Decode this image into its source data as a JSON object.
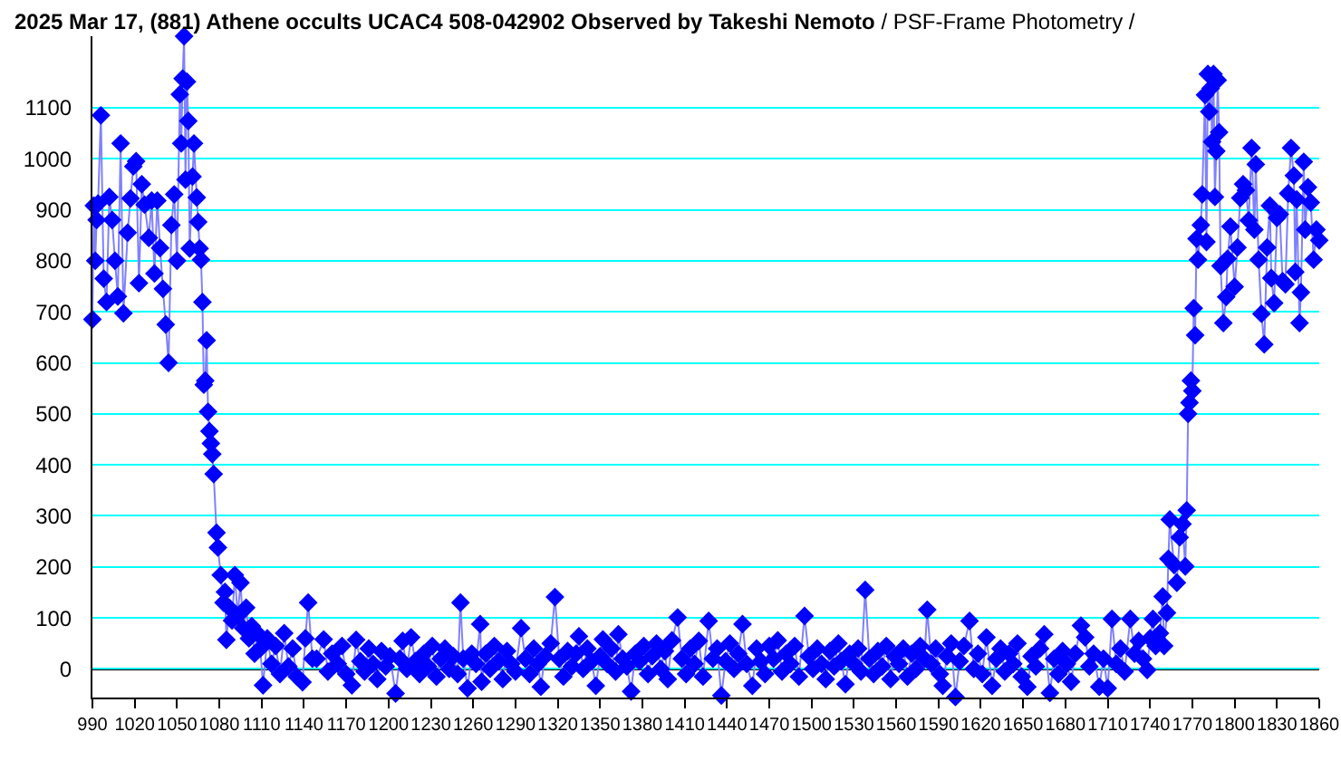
{
  "chart_data": {
    "type": "line",
    "title": "2025 Mar 17, (881) Athene occults UCAC4 508-042902 Observed by Takeshi Nemoto",
    "subtitle": "/ PSF-Frame Photometry /",
    "x": [
      990,
      991,
      992,
      993,
      994,
      996,
      998,
      1000,
      1002,
      1004,
      1006,
      1008,
      1010,
      1012,
      1015,
      1017,
      1019,
      1021,
      1023,
      1025,
      1027,
      1030,
      1032,
      1034,
      1036,
      1038,
      1040,
      1042,
      1044,
      1046,
      1048,
      1050,
      1052,
      1053,
      1054,
      1055,
      1056,
      1057,
      1058,
      1059,
      1061,
      1062,
      1064,
      1065,
      1066,
      1067,
      1068,
      1069,
      1070,
      1071,
      1072,
      1073,
      1074,
      1075,
      1076,
      1078,
      1079,
      1081,
      1083,
      1084,
      1085,
      1087,
      1089,
      1091,
      1093,
      1095,
      1097,
      1099,
      1101,
      1103,
      1105,
      1107,
      1109,
      1111,
      1114,
      1117,
      1120,
      1123,
      1126,
      1129,
      1132,
      1135,
      1139,
      1141,
      1143,
      1146,
      1149,
      1154,
      1157,
      1160,
      1164,
      1167,
      1170,
      1174,
      1177,
      1180,
      1183,
      1186,
      1189,
      1192,
      1195,
      1198,
      1201,
      1205,
      1208,
      1210,
      1213,
      1216,
      1219,
      1222,
      1225,
      1228,
      1231,
      1234,
      1237,
      1240,
      1243,
      1246,
      1249,
      1251,
      1253,
      1256,
      1259,
      1262,
      1265,
      1266,
      1269,
      1272,
      1275,
      1278,
      1281,
      1284,
      1287,
      1290,
      1294,
      1297,
      1300,
      1303,
      1306,
      1308,
      1311,
      1315,
      1318,
      1321,
      1324,
      1327,
      1330,
      1333,
      1335,
      1338,
      1341,
      1344,
      1347,
      1350,
      1352,
      1355,
      1358,
      1361,
      1363,
      1366,
      1369,
      1372,
      1375,
      1378,
      1381,
      1384,
      1387,
      1390,
      1393,
      1396,
      1398,
      1401,
      1405,
      1408,
      1411,
      1414,
      1417,
      1420,
      1423,
      1427,
      1430,
      1433,
      1436,
      1439,
      1442,
      1445,
      1448,
      1451,
      1454,
      1458,
      1461,
      1464,
      1467,
      1470,
      1473,
      1476,
      1479,
      1482,
      1485,
      1488,
      1491,
      1495,
      1498,
      1501,
      1504,
      1507,
      1510,
      1513,
      1516,
      1519,
      1521,
      1524,
      1527,
      1530,
      1533,
      1535,
      1538,
      1541,
      1544,
      1547,
      1550,
      1553,
      1556,
      1559,
      1562,
      1565,
      1568,
      1571,
      1574,
      1577,
      1580,
      1582,
      1585,
      1588,
      1591,
      1593,
      1596,
      1599,
      1602,
      1605,
      1608,
      1612,
      1615,
      1618,
      1621,
      1624,
      1628,
      1631,
      1634,
      1637,
      1640,
      1643,
      1646,
      1649,
      1653,
      1656,
      1659,
      1662,
      1665,
      1669,
      1672,
      1675,
      1678,
      1681,
      1684,
      1687,
      1691,
      1694,
      1697,
      1700,
      1704,
      1707,
      1710,
      1713,
      1716,
      1719,
      1722,
      1726,
      1729,
      1732,
      1735,
      1738,
      1740,
      1742,
      1744,
      1747,
      1749,
      1750,
      1752,
      1753,
      1754,
      1757,
      1759,
      1761,
      1763,
      1765,
      1766,
      1767,
      1768,
      1769,
      1770,
      1771,
      1772,
      1773,
      1774,
      1776,
      1777,
      1779,
      1780,
      1781,
      1782,
      1783,
      1784,
      1785,
      1786,
      1787,
      1788,
      1789,
      1790,
      1792,
      1794,
      1795,
      1797,
      1800,
      1802,
      1804,
      1806,
      1808,
      1810,
      1812,
      1814,
      1815,
      1817,
      1819,
      1821,
      1823,
      1825,
      1826,
      1828,
      1830,
      1832,
      1834,
      1836,
      1838,
      1840,
      1842,
      1843,
      1844,
      1846,
      1847,
      1849,
      1850,
      1852,
      1854,
      1856,
      1858,
      1860
    ],
    "series": [
      {
        "color": "#0000ff",
        "values": [
          685,
          908,
          800,
          880,
          912,
          1085,
          765,
          719,
          925,
          880,
          800,
          730,
          1030,
          697,
          855,
          922,
          985,
          995,
          756,
          950,
          910,
          845,
          918,
          775,
          918,
          825,
          745,
          675,
          600,
          870,
          930,
          800,
          1126,
          1030,
          1157,
          1240,
          959,
          1151,
          1074,
          824,
          965,
          1030,
          924,
          876,
          824,
          802,
          719,
          557,
          565,
          644,
          504,
          466,
          442,
          421,
          382,
          267,
          238,
          184,
          130,
          151,
          57,
          120,
          95,
          184,
          104,
          169,
          80,
          120,
          60,
          84,
          30,
          70,
          40,
          -32,
          60,
          10,
          45,
          -10,
          70,
          5,
          40,
          -15,
          -26,
          60,
          130,
          20,
          20,
          58,
          -5,
          30,
          10,
          45,
          -10,
          -32,
          57,
          15,
          -5,
          40,
          10,
          -20,
          35,
          5,
          25,
          -48,
          20,
          55,
          0,
          62,
          15,
          -10,
          30,
          5,
          45,
          -15,
          20,
          40,
          0,
          25,
          -10,
          130,
          20,
          -38,
          30,
          10,
          88,
          -25,
          30,
          0,
          45,
          15,
          -20,
          35,
          10,
          -5,
          80,
          20,
          -10,
          40,
          10,
          -35,
          25,
          50,
          141,
          20,
          -15,
          35,
          5,
          30,
          64,
          0,
          40,
          15,
          -33,
          25,
          58,
          10,
          40,
          -5,
          68,
          20,
          5,
          -44,
          30,
          15,
          45,
          -10,
          25,
          50,
          0,
          35,
          -20,
          56,
          101,
          20,
          -10,
          40,
          10,
          55,
          -15,
          94,
          20,
          40,
          -52,
          15,
          50,
          0,
          30,
          88,
          10,
          -33,
          40,
          15,
          -10,
          45,
          20,
          56,
          -5,
          30,
          10,
          45,
          -15,
          104,
          25,
          0,
          40,
          10,
          -20,
          35,
          5,
          50,
          15,
          -30,
          30,
          10,
          40,
          -5,
          155,
          20,
          -10,
          35,
          5,
          45,
          -20,
          25,
          10,
          40,
          -15,
          30,
          0,
          45,
          20,
          116,
          10,
          40,
          -10,
          -33,
          25,
          50,
          -55,
          15,
          45,
          94,
          0,
          30,
          -10,
          62,
          -33,
          20,
          40,
          -5,
          30,
          10,
          50,
          -15,
          -35,
          25,
          5,
          40,
          68,
          -47,
          20,
          -10,
          35,
          10,
          -25,
          30,
          85,
          62,
          5,
          30,
          -35,
          20,
          -38,
          98,
          10,
          40,
          -5,
          98,
          30,
          55,
          20,
          -2,
          60,
          98,
          45,
          70,
          142,
          45,
          110,
          216,
          293,
          204,
          169,
          258,
          284,
          201,
          311,
          500,
          522,
          565,
          545,
          707,
          654,
          843,
          802,
          870,
          930,
          1125,
          837,
          1166,
          1092,
          1138,
          1033,
          1166,
          925,
          1015,
          1154,
          1052,
          790,
          678,
          729,
          804,
          867,
          749,
          826,
          923,
          950,
          938,
          879,
          1021,
          861,
          989,
          802,
          696,
          636,
          826,
          908,
          766,
          717,
          884,
          891,
          760,
          754,
          932,
          1021,
          967,
          778,
          920,
          678,
          738,
          994,
          861,
          944,
          914,
          802,
          861,
          840
        ]
      }
    ],
    "marker": "diamond",
    "xlim": [
      990,
      1860
    ],
    "xticks": [
      990,
      1020,
      1050,
      1080,
      1110,
      1140,
      1170,
      1200,
      1230,
      1260,
      1290,
      1320,
      1350,
      1380,
      1410,
      1440,
      1470,
      1500,
      1530,
      1560,
      1590,
      1620,
      1650,
      1680,
      1710,
      1740,
      1770,
      1800,
      1830,
      1860
    ],
    "ylim": [
      -56,
      1240
    ],
    "yticks": [
      0,
      100,
      200,
      300,
      400,
      500,
      600,
      700,
      800,
      900,
      1000,
      1100
    ],
    "grid": "y",
    "ref_lines": [
      {
        "axis": "y",
        "value": 0,
        "color": "#000000"
      }
    ]
  }
}
